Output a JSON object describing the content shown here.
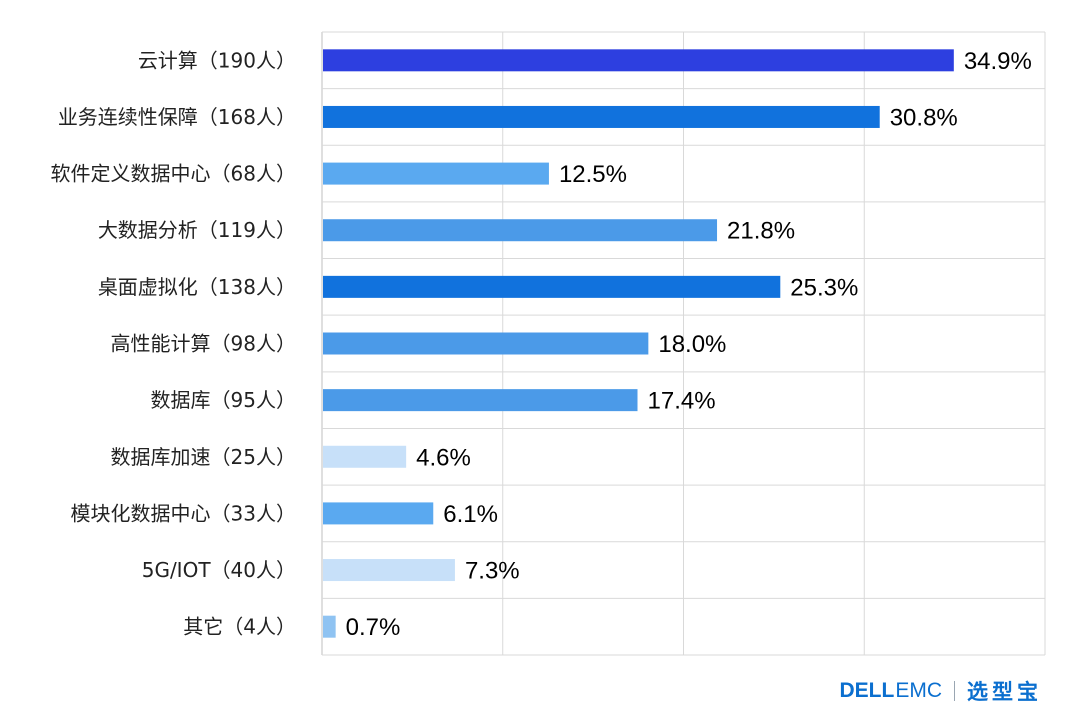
{
  "chart_data": {
    "type": "bar",
    "orientation": "horizontal",
    "categories": [
      "云计算（190人）",
      "业务连续性保障（168人）",
      "软件定义数据中心（68人）",
      "大数据分析（119人）",
      "桌面虚拟化（138人）",
      "高性能计算（98人）",
      "数据库（95人）",
      "数据库加速（25人）",
      "模块化数据中心（33人）",
      "5G/IOT（40人）",
      "其它（4人）"
    ],
    "values": [
      34.9,
      30.8,
      12.5,
      21.8,
      25.3,
      18.0,
      17.4,
      4.6,
      6.1,
      7.3,
      0.7
    ],
    "value_labels": [
      "34.9%",
      "30.8%",
      "12.5%",
      "21.8%",
      "25.3%",
      "18.0%",
      "17.4%",
      "4.6%",
      "6.1%",
      "7.3%",
      "0.7%"
    ],
    "bar_colors": [
      "#2d3fe0",
      "#1172dd",
      "#5aa9f0",
      "#4b9ae8",
      "#1172dd",
      "#4b9ae8",
      "#4b9ae8",
      "#c7e0f9",
      "#5aa9f0",
      "#c7e0f9",
      "#8fc3f2"
    ],
    "xlim": [
      0,
      40
    ],
    "grid": true,
    "title": "",
    "xlabel": "",
    "ylabel": ""
  },
  "brand": {
    "dell": "DELL",
    "emc": "EMC",
    "xuanxingbao": "选型宝"
  }
}
